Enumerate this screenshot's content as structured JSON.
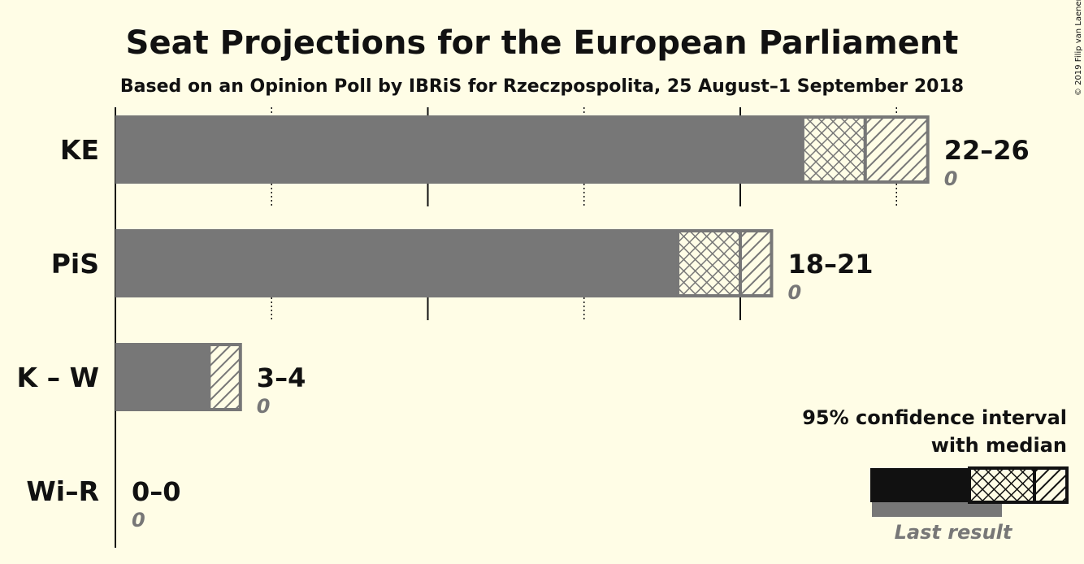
{
  "chart_data": {
    "type": "bar",
    "orientation": "horizontal",
    "title": "Seat Projections for the European Parliament",
    "subtitle": "Based on an Opinion Poll by IBRiS for Rzeczpospolita, 25 August–1 September 2018",
    "copyright": "© 2019 Filip van Laenen",
    "xlim": [
      0,
      27
    ],
    "gridlines": [
      5,
      10,
      15,
      20,
      25
    ],
    "categories": [
      "KE",
      "PiS",
      "K – W",
      "Wi–R"
    ],
    "series": [
      {
        "category": "KE",
        "low": 22,
        "median": 24,
        "high": 26,
        "range_label": "22–26",
        "last_result": 0,
        "last_label": "0"
      },
      {
        "category": "PiS",
        "low": 18,
        "median": 20,
        "high": 21,
        "range_label": "18–21",
        "last_result": 0,
        "last_label": "0"
      },
      {
        "category": "K – W",
        "low": 3,
        "median": 3,
        "high": 4,
        "range_label": "3–4",
        "last_result": 0,
        "last_label": "0"
      },
      {
        "category": "Wi–R",
        "low": 0,
        "median": 0,
        "high": 0,
        "range_label": "0–0",
        "last_result": 0,
        "last_label": "0"
      }
    ],
    "legend": {
      "line1": "95% confidence interval",
      "line2": "with median",
      "last_result": "Last result",
      "placement": "bottom-right"
    },
    "colors": {
      "bar": "#777777",
      "bar_border": "#777777",
      "hatch": "#777777",
      "legend_bar": "#111111",
      "legend_last": "#777777",
      "background": "#FFFDE6"
    }
  }
}
